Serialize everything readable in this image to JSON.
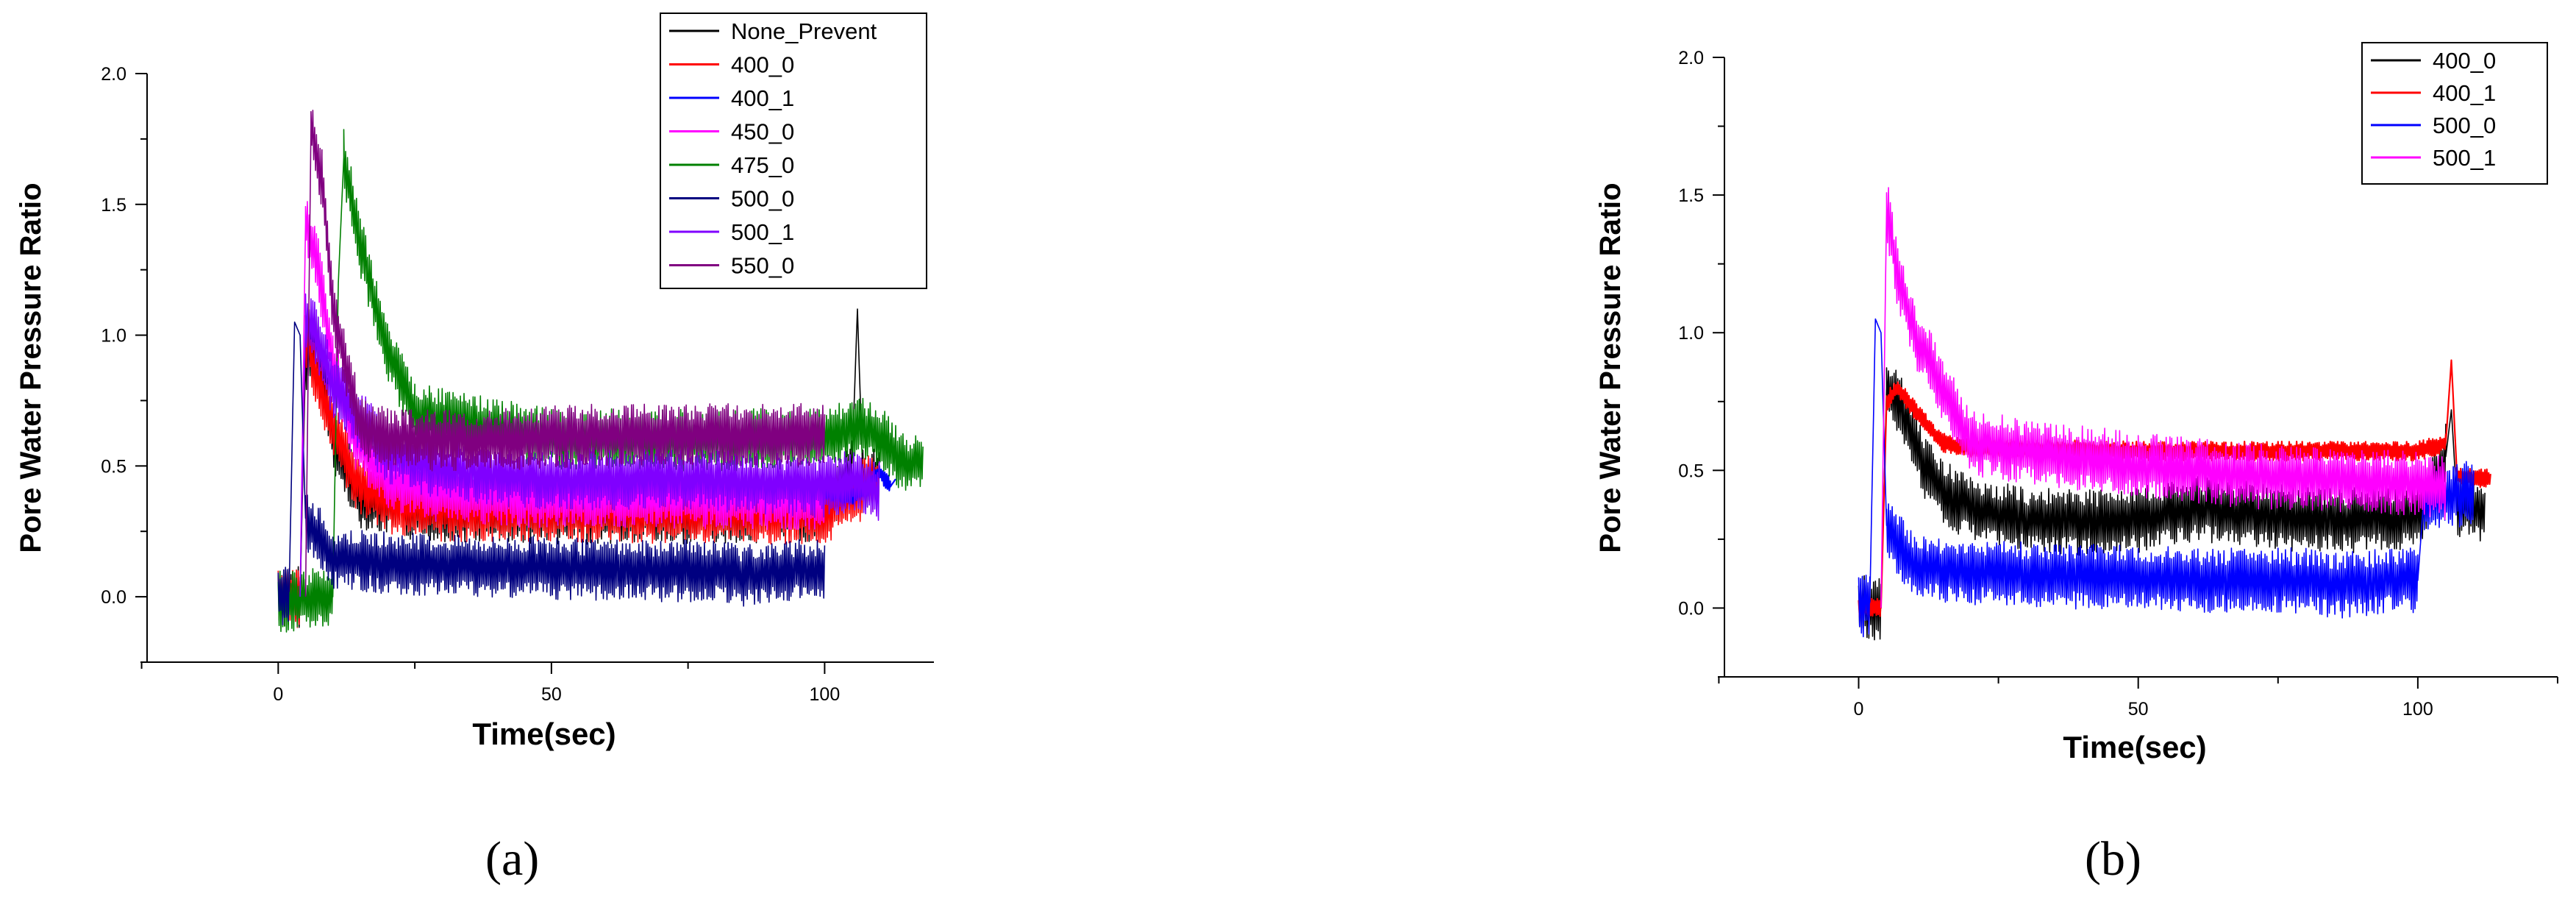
{
  "panels": [
    {
      "label": "(a)"
    },
    {
      "label": "(b)"
    }
  ],
  "chart_data": [
    {
      "type": "line",
      "xlabel": "Time(sec)",
      "ylabel": "Pore Water Pressure Ratio",
      "xlim": [
        -24,
        120
      ],
      "ylim": [
        -0.25,
        2.0
      ],
      "xticks": [
        0,
        50,
        100
      ],
      "yticks": [
        0.0,
        0.5,
        1.0,
        1.5,
        2.0
      ],
      "grid": false,
      "legend_position": "top-right",
      "series": [
        {
          "name": "None_Prevent",
          "color": "#000000",
          "band": true,
          "points": [
            [
              0,
              0.0
            ],
            [
              4,
              0.0
            ],
            [
              5,
              0.9
            ],
            [
              7,
              1.0
            ],
            [
              10,
              0.6
            ],
            [
              15,
              0.38
            ],
            [
              25,
              0.33
            ],
            [
              50,
              0.32
            ],
            [
              75,
              0.32
            ],
            [
              100,
              0.33
            ],
            [
              105,
              0.5
            ],
            [
              106,
              1.1
            ],
            [
              107,
              0.45
            ],
            [
              110,
              0.45
            ]
          ]
        },
        {
          "name": "400_0",
          "color": "#ff0000",
          "band": true,
          "points": [
            [
              0,
              0.0
            ],
            [
              4,
              0.0
            ],
            [
              5,
              1.0
            ],
            [
              7,
              0.85
            ],
            [
              11,
              0.6
            ],
            [
              14,
              0.45
            ],
            [
              20,
              0.36
            ],
            [
              30,
              0.33
            ],
            [
              50,
              0.33
            ],
            [
              75,
              0.32
            ],
            [
              100,
              0.32
            ],
            [
              106,
              0.4
            ],
            [
              110,
              0.45
            ]
          ]
        },
        {
          "name": "400_1",
          "color": "#0000ff",
          "band": false,
          "points": [
            [
              100,
              0.4
            ],
            [
              105,
              0.38
            ],
            [
              108,
              0.42
            ],
            [
              110,
              0.48
            ],
            [
              112,
              0.42
            ],
            [
              113,
              0.45
            ]
          ]
        },
        {
          "name": "450_0",
          "color": "#ff00ff",
          "band": true,
          "points": [
            [
              4,
              0.0
            ],
            [
              5,
              1.43
            ],
            [
              7,
              1.3
            ],
            [
              10,
              0.9
            ],
            [
              14,
              0.6
            ],
            [
              20,
              0.45
            ],
            [
              30,
              0.4
            ],
            [
              50,
              0.38
            ],
            [
              75,
              0.38
            ],
            [
              100,
              0.37
            ]
          ]
        },
        {
          "name": "475_0",
          "color": "#008000",
          "band": true,
          "points": [
            [
              0,
              -0.02
            ],
            [
              10,
              0.0
            ],
            [
              11,
              1.2
            ],
            [
              12,
              1.68
            ],
            [
              15,
              1.35
            ],
            [
              18,
              1.1
            ],
            [
              20,
              0.95
            ],
            [
              25,
              0.7
            ],
            [
              50,
              0.6
            ],
            [
              75,
              0.6
            ],
            [
              100,
              0.6
            ],
            [
              106,
              0.65
            ],
            [
              110,
              0.62
            ],
            [
              115,
              0.5
            ],
            [
              118,
              0.52
            ]
          ]
        },
        {
          "name": "500_0",
          "color": "#000080",
          "band": true,
          "points": [
            [
              0,
              0.0
            ],
            [
              2,
              0.02
            ],
            [
              3,
              1.05
            ],
            [
              4,
              1.0
            ],
            [
              5,
              0.3
            ],
            [
              10,
              0.15
            ],
            [
              20,
              0.13
            ],
            [
              30,
              0.12
            ],
            [
              50,
              0.11
            ],
            [
              60,
              0.1
            ],
            [
              70,
              0.1
            ],
            [
              80,
              0.1
            ],
            [
              85,
              0.08
            ],
            [
              95,
              0.1
            ],
            [
              100,
              0.1
            ]
          ]
        },
        {
          "name": "500_1",
          "color": "#8000ff",
          "band": true,
          "points": [
            [
              4,
              0.0
            ],
            [
              5,
              1.05
            ],
            [
              7,
              1.0
            ],
            [
              10,
              0.8
            ],
            [
              20,
              0.55
            ],
            [
              30,
              0.48
            ],
            [
              50,
              0.45
            ],
            [
              75,
              0.45
            ],
            [
              100,
              0.42
            ],
            [
              106,
              0.45
            ],
            [
              110,
              0.4
            ]
          ]
        },
        {
          "name": "550_0",
          "color": "#800080",
          "band": true,
          "points": [
            [
              5,
              0.0
            ],
            [
              6,
              1.8
            ],
            [
              8,
              1.6
            ],
            [
              10,
              1.1
            ],
            [
              15,
              0.65
            ],
            [
              20,
              0.6
            ],
            [
              40,
              0.6
            ],
            [
              60,
              0.62
            ],
            [
              80,
              0.62
            ],
            [
              100,
              0.62
            ]
          ]
        }
      ]
    },
    {
      "type": "line",
      "xlabel": "Time(sec)",
      "ylabel": "Pore Water Pressure Ratio",
      "xlim": [
        -24,
        125
      ],
      "ylim": [
        -0.25,
        2.0
      ],
      "xticks": [
        0,
        50,
        100
      ],
      "yticks": [
        0.0,
        0.5,
        1.0,
        1.5,
        2.0
      ],
      "grid": false,
      "legend_position": "top-right",
      "series": [
        {
          "name": "400_0",
          "color": "#000000",
          "band": true,
          "points": [
            [
              0,
              0.0
            ],
            [
              4,
              0.0
            ],
            [
              5,
              0.8
            ],
            [
              7,
              0.75
            ],
            [
              10,
              0.6
            ],
            [
              12,
              0.5
            ],
            [
              15,
              0.42
            ],
            [
              20,
              0.36
            ],
            [
              30,
              0.32
            ],
            [
              40,
              0.31
            ],
            [
              50,
              0.32
            ],
            [
              55,
              0.34
            ],
            [
              60,
              0.36
            ],
            [
              70,
              0.34
            ],
            [
              80,
              0.32
            ],
            [
              90,
              0.32
            ],
            [
              100,
              0.33
            ],
            [
              105,
              0.55
            ],
            [
              106,
              0.72
            ],
            [
              107,
              0.38
            ],
            [
              110,
              0.36
            ],
            [
              112,
              0.35
            ]
          ]
        },
        {
          "name": "400_1",
          "color": "#ff0000",
          "band": false,
          "points": [
            [
              0,
              0.0
            ],
            [
              4,
              0.0
            ],
            [
              5,
              0.75
            ],
            [
              7,
              0.8
            ],
            [
              10,
              0.72
            ],
            [
              15,
              0.6
            ],
            [
              20,
              0.58
            ],
            [
              30,
              0.58
            ],
            [
              50,
              0.57
            ],
            [
              70,
              0.57
            ],
            [
              90,
              0.57
            ],
            [
              100,
              0.57
            ],
            [
              105,
              0.6
            ],
            [
              106,
              0.9
            ],
            [
              107,
              0.48
            ],
            [
              110,
              0.47
            ],
            [
              113,
              0.47
            ]
          ]
        },
        {
          "name": "500_0",
          "color": "#0000ff",
          "band": true,
          "points": [
            [
              0,
              0.0
            ],
            [
              2,
              0.02
            ],
            [
              3,
              1.05
            ],
            [
              4,
              1.0
            ],
            [
              5,
              0.3
            ],
            [
              10,
              0.15
            ],
            [
              20,
              0.13
            ],
            [
              30,
              0.12
            ],
            [
              50,
              0.11
            ],
            [
              60,
              0.1
            ],
            [
              70,
              0.1
            ],
            [
              80,
              0.1
            ],
            [
              85,
              0.08
            ],
            [
              95,
              0.1
            ],
            [
              100,
              0.1
            ],
            [
              101,
              0.38
            ],
            [
              105,
              0.4
            ],
            [
              110,
              0.42
            ]
          ]
        },
        {
          "name": "500_1",
          "color": "#ff00ff",
          "band": true,
          "points": [
            [
              4,
              0.0
            ],
            [
              5,
              1.45
            ],
            [
              7,
              1.2
            ],
            [
              10,
              1.0
            ],
            [
              15,
              0.8
            ],
            [
              20,
              0.6
            ],
            [
              30,
              0.57
            ],
            [
              50,
              0.52
            ],
            [
              70,
              0.48
            ],
            [
              90,
              0.46
            ],
            [
              100,
              0.45
            ],
            [
              105,
              0.44
            ]
          ]
        }
      ]
    }
  ]
}
